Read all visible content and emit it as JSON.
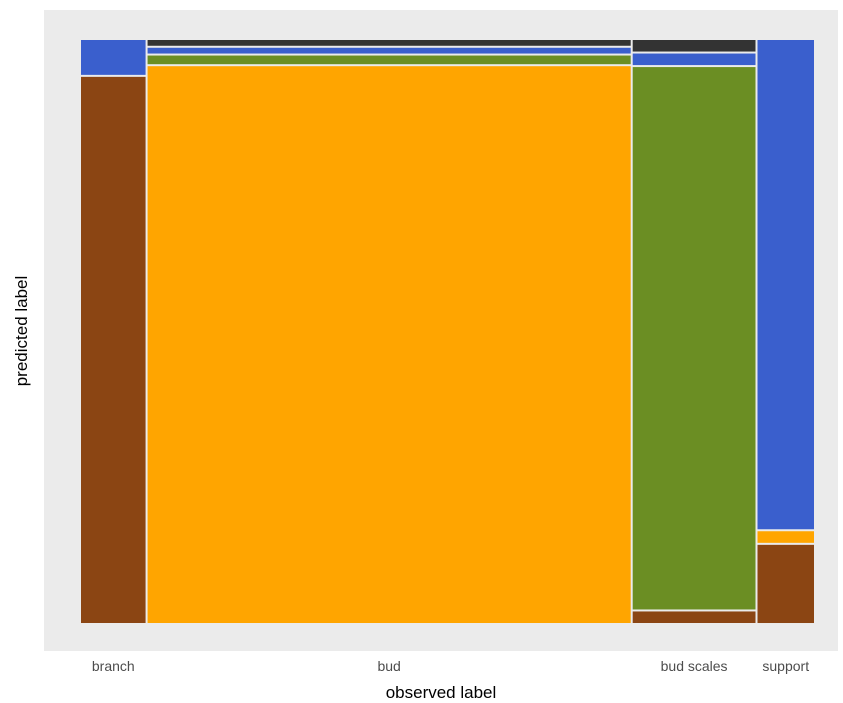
{
  "chart_data": {
    "type": "mosaic",
    "title": "",
    "xlabel": "observed label",
    "ylabel": "predicted label",
    "categories": [
      "branch",
      "bud",
      "bud scales",
      "support"
    ],
    "column_widths": [
      0.112,
      0.838,
      0.213,
      0.098
    ],
    "stack_order_bottom_to_top": [
      "branch",
      "bud",
      "bud scales",
      "support",
      "other"
    ],
    "series_colors": {
      "branch": "#8B4513",
      "bud": "#FFA500",
      "bud scales": "#6B8E23",
      "support": "#3A5FCD",
      "other": "#333333"
    },
    "columns": [
      {
        "observed": "branch",
        "predicted": {
          "branch": 0.94,
          "bud": 0.0,
          "bud scales": 0.0,
          "support": 0.06,
          "other": 0.0
        }
      },
      {
        "observed": "bud",
        "predicted": {
          "branch": 0.0,
          "bud": 0.965,
          "bud scales": 0.015,
          "support": 0.01,
          "other": 0.01
        }
      },
      {
        "observed": "bud scales",
        "predicted": {
          "branch": 0.02,
          "bud": 0.0,
          "bud scales": 0.94,
          "support": 0.02,
          "other": 0.02
        }
      },
      {
        "observed": "support",
        "predicted": {
          "branch": 0.135,
          "bud": 0.02,
          "bud scales": 0.0,
          "support": 0.845,
          "other": 0.0
        }
      }
    ],
    "legend": "none",
    "panel_background": "#EBEBEB",
    "grid": false
  }
}
